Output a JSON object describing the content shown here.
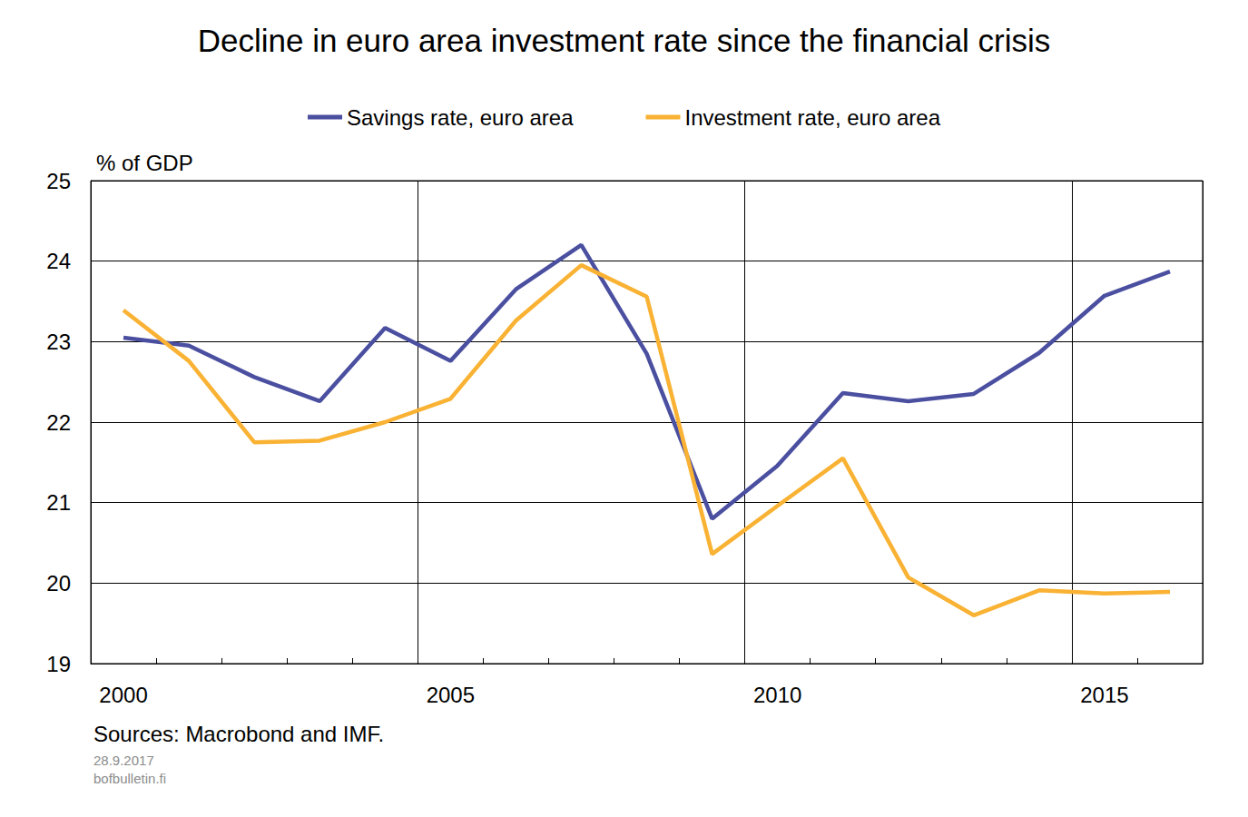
{
  "chart_data": {
    "type": "line",
    "title": "Decline in euro area investment rate since the financial crisis",
    "y_label": "% of GDP",
    "annotations": [
      "Sources: Macrobond and IMF.",
      "28.9.2017",
      "bofbulletin.fi"
    ],
    "categories": [
      "2000",
      null,
      null,
      null,
      null,
      "2005",
      null,
      null,
      null,
      null,
      "2010",
      null,
      null,
      null,
      null,
      "2015",
      null
    ],
    "series": [
      {
        "name": "Savings rate, euro area",
        "color": "#4b4fa0",
        "values": [
          23.05,
          22.95,
          22.56,
          22.26,
          23.17,
          22.76,
          23.65,
          24.2,
          22.85,
          20.8,
          21.46,
          22.36,
          22.26,
          22.35,
          22.86,
          23.57,
          23.87
        ]
      },
      {
        "name": "Investment rate, euro area",
        "color": "#f9b233",
        "values": [
          23.39,
          22.76,
          21.75,
          21.77,
          22.0,
          22.29,
          23.26,
          23.95,
          23.56,
          20.36,
          20.96,
          21.55,
          20.07,
          19.6,
          19.91,
          19.87,
          19.89
        ]
      }
    ],
    "ylim": [
      19,
      25
    ],
    "yticks": [
      19,
      20,
      21,
      22,
      23,
      24,
      25
    ],
    "grid": true,
    "legend": "top"
  }
}
